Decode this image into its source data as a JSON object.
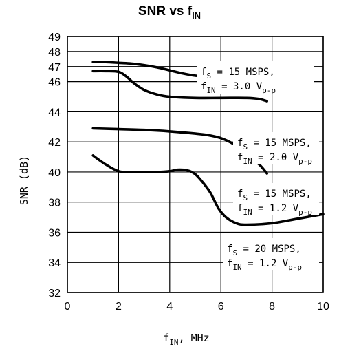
{
  "chart_data": {
    "type": "line",
    "title": "SNR vs f",
    "title_sub": "IN",
    "xlabel": "f",
    "xlabel_sub": "IN",
    "xlabel_suffix": ", MHz",
    "ylabel": "SNR (dB)",
    "xlim": [
      0,
      10
    ],
    "ylim": [
      32,
      49
    ],
    "x_ticks": [
      0,
      2,
      4,
      6,
      8,
      10
    ],
    "y_ticks": [
      32,
      34,
      36,
      38,
      40,
      42,
      44,
      46,
      47,
      48,
      49
    ],
    "grid": true,
    "series": [
      {
        "x": [
          1.0,
          1.5,
          2.0,
          2.5,
          3.0,
          3.5,
          4.0,
          4.5,
          5.0,
          5.5,
          6.0,
          6.5,
          7.0,
          7.5
        ],
        "values": [
          47.3,
          47.3,
          47.25,
          47.2,
          47.1,
          46.95,
          46.75,
          46.55,
          46.4,
          46.35,
          46.3,
          46.3,
          46.3,
          46.3
        ]
      },
      {
        "x": [
          1.0,
          1.5,
          2.0,
          2.3,
          2.6,
          3.0,
          3.5,
          4.0,
          5.0,
          6.0,
          7.0,
          7.5,
          7.8
        ],
        "values": [
          46.7,
          46.7,
          46.65,
          46.35,
          45.9,
          45.45,
          45.15,
          45.0,
          44.92,
          44.92,
          44.92,
          44.85,
          44.7
        ]
      },
      {
        "x": [
          1.0,
          2.0,
          3.0,
          4.0,
          5.0,
          5.5,
          6.0,
          6.5,
          7.0,
          7.5,
          7.8
        ],
        "values": [
          42.9,
          42.85,
          42.8,
          42.7,
          42.55,
          42.45,
          42.25,
          41.85,
          41.2,
          40.5,
          39.9
        ]
      },
      {
        "x": [
          1.0,
          1.5,
          2.0,
          2.5,
          3.0,
          3.5,
          4.0,
          4.3,
          4.7,
          5.0,
          5.3,
          5.6,
          5.9,
          6.2,
          6.6,
          7.0,
          8.0,
          9.0,
          10.0
        ],
        "values": [
          41.1,
          40.5,
          40.05,
          40.0,
          40.0,
          40.0,
          40.05,
          40.15,
          40.1,
          39.85,
          39.3,
          38.6,
          37.6,
          37.0,
          36.6,
          36.5,
          36.6,
          36.9,
          37.2
        ]
      }
    ],
    "annotations": [
      {
        "line1_a": "f",
        "line1_sub": "S",
        "line1_b": " = 15 MSPS,",
        "line2_a": "f",
        "line2_sub": "IN",
        "line2_b": " = 3.0 V",
        "line2_sub2": "p-p"
      },
      {
        "line1_a": "f",
        "line1_sub": "S",
        "line1_b": " = 15 MSPS,",
        "line2_a": "f",
        "line2_sub": "IN",
        "line2_b": " = 2.0 V",
        "line2_sub2": "p-p"
      },
      {
        "line1_a": "f",
        "line1_sub": "S",
        "line1_b": " = 15 MSPS,",
        "line2_a": "f",
        "line2_sub": "IN",
        "line2_b": " = 1.2 V",
        "line2_sub2": "p-p"
      },
      {
        "line1_a": "f",
        "line1_sub": "S",
        "line1_b": " = 20 MSPS,",
        "line2_a": "f",
        "line2_sub": "IN",
        "line2_b": " = 1.2 V",
        "line2_sub2": "p-p"
      }
    ]
  }
}
